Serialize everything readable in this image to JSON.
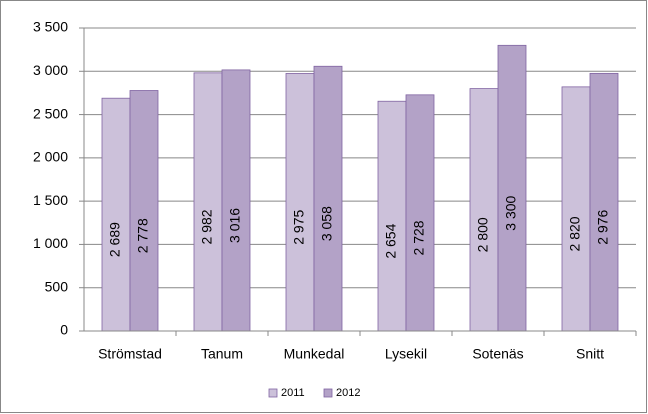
{
  "chart_data": {
    "type": "bar",
    "categories": [
      "Strömstad",
      "Tanum",
      "Munkedal",
      "Lysekil",
      "Sotenäs",
      "Snitt"
    ],
    "series": [
      {
        "name": "2011",
        "color": "#ccc1da",
        "values": [
          2689,
          2982,
          2975,
          2654,
          2800,
          2820
        ],
        "value_labels": [
          "2 689",
          "2 982",
          "2 975",
          "2 654",
          "2 800",
          "2 820"
        ]
      },
      {
        "name": "2012",
        "color": "#b3a2c7",
        "values": [
          2778,
          3016,
          3058,
          2728,
          3300,
          2976
        ],
        "value_labels": [
          "2 778",
          "3 016",
          "3 058",
          "2 728",
          "3 300",
          "2 976"
        ]
      }
    ],
    "ylim": [
      0,
      3500
    ],
    "yticks": [
      0,
      500,
      {
        "value": 1000,
        "label": "1 000"
      },
      {
        "value": 1500,
        "label": "1 500"
      },
      {
        "value": 2000,
        "label": "2 000"
      },
      {
        "value": 2500,
        "label": "2 500"
      },
      {
        "value": 3000,
        "label": "3 000"
      },
      {
        "value": 3500,
        "label": "3 500"
      }
    ],
    "grid": true,
    "legend": "bottom"
  }
}
